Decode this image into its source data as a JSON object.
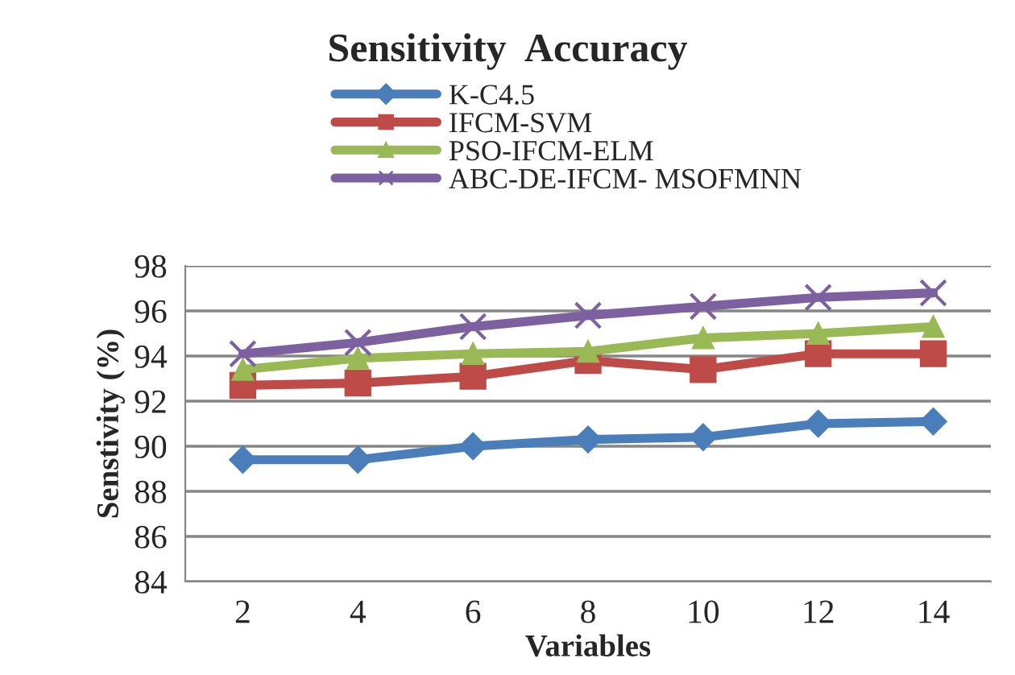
{
  "chart_data": {
    "type": "line",
    "title": "Sensitivity  Accuracy",
    "xlabel": "Variables",
    "ylabel": "Senstivity (%)",
    "categories": [
      "2",
      "4",
      "6",
      "8",
      "10",
      "12",
      "14"
    ],
    "series": [
      {
        "name": "K-C4.5",
        "color": "#4a7ebb",
        "marker": "diamond",
        "values": [
          89.4,
          89.4,
          90.0,
          90.3,
          90.4,
          91.0,
          91.1
        ]
      },
      {
        "name": "IFCM-SVM",
        "color": "#be4b48",
        "marker": "square",
        "values": [
          92.7,
          92.8,
          93.1,
          93.8,
          93.4,
          94.1,
          94.1
        ]
      },
      {
        "name": "PSO-IFCM-ELM",
        "color": "#98b954",
        "marker": "triangle",
        "values": [
          93.4,
          93.9,
          94.1,
          94.2,
          94.8,
          95.0,
          95.3
        ]
      },
      {
        "name": "ABC-DE-IFCM- MSOFMNN",
        "color": "#7d60a0",
        "marker": "cross",
        "values": [
          94.1,
          94.6,
          95.3,
          95.8,
          96.2,
          96.6,
          96.8
        ]
      }
    ],
    "ylim": [
      84,
      98
    ],
    "yticks": [
      84,
      86,
      88,
      90,
      92,
      94,
      96,
      98
    ],
    "grid": "y",
    "legend": "top",
    "line_style": "solid"
  }
}
